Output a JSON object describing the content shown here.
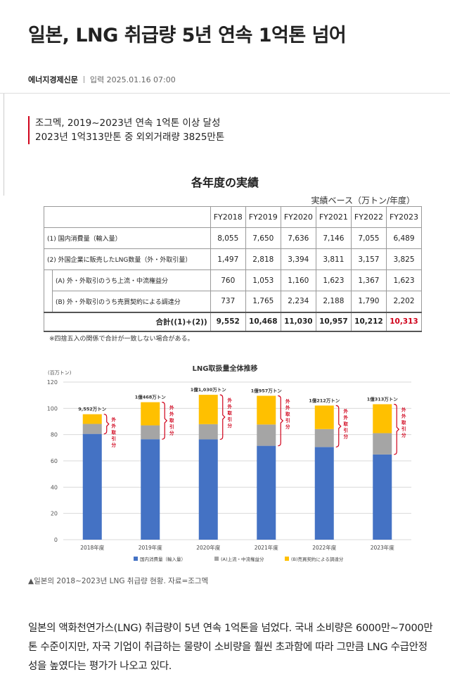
{
  "article": {
    "headline": "일본, LNG 취급량 5년 연속 1억톤 넘어",
    "press": "에너지경제신문",
    "date": "입력 2025.01.16 07:00",
    "summary": [
      "조그멕, 2019~2023년 연속 1억톤 이상 달성",
      "2023년 1억313만톤 중 외외거래량 3825만톤"
    ],
    "caption": "▲일본의 2018~2023년 LNG 취급량 현황. 자료=조그멕",
    "body": "일본의 액화천연가스(LNG) 취급량이 5년 연속 1억톤을 넘었다. 국내 소비량은 6000만~7000만톤 수준이지만, 자국 기업이 취급하는 물량이 소비량을 훨씬 초과함에 따라 그만큼 LNG 수급안정성을 높였다는 평가가 나오고 있다."
  },
  "table": {
    "title": "各年度の実績",
    "unit": "実績ベース（万トン/年度）",
    "years": [
      "FY2018",
      "FY2019",
      "FY2020",
      "FY2021",
      "FY2022",
      "FY2023"
    ],
    "rows": [
      {
        "label": "(1) 国内消費量（輸入量）",
        "values": [
          "8,055",
          "7,650",
          "7,636",
          "7,146",
          "7,055",
          "6,489"
        ]
      },
      {
        "label": "(2) 外国企業に販売したLNG数量（外・外取引量）",
        "values": [
          "1,497",
          "2,818",
          "3,394",
          "3,811",
          "3,157",
          "3,825"
        ]
      },
      {
        "label": "(A) 外・外取引のうち上流・中流権益分",
        "values": [
          "760",
          "1,053",
          "1,160",
          "1,623",
          "1,367",
          "1,623"
        ]
      },
      {
        "label": "(B) 外・外取引のうち売買契約による調達分",
        "values": [
          "737",
          "1,765",
          "2,234",
          "2,188",
          "1,790",
          "2,202"
        ]
      }
    ],
    "total_label": "合計((1)+(2))",
    "totals": [
      "9,552",
      "10,468",
      "11,030",
      "10,957",
      "10,212",
      "10,313"
    ],
    "note": "※四捨五入の関係で合計が一致しない場合がある。"
  },
  "chart_data": {
    "type": "bar",
    "stacked": true,
    "title": "LNG取扱量全体推移",
    "ylabel": "(百万トン)",
    "ylim": [
      0,
      120
    ],
    "yticks": [
      0,
      20,
      40,
      60,
      80,
      100,
      120
    ],
    "categories": [
      "2018年度",
      "2019年度",
      "2020年度",
      "2021年度",
      "2022年度",
      "2023年度"
    ],
    "series": [
      {
        "name": "国内消費量（輸入量）",
        "color": "#4472c4",
        "values": [
          80.55,
          76.5,
          76.36,
          71.46,
          70.55,
          64.89
        ]
      },
      {
        "name": "(A)上流・中流権益分",
        "color": "#a5a5a5",
        "values": [
          7.6,
          10.53,
          11.6,
          16.23,
          13.67,
          16.23
        ]
      },
      {
        "name": "(B)売買契約による調達分",
        "color": "#ffc000",
        "values": [
          7.37,
          17.65,
          22.34,
          21.88,
          17.9,
          22.02
        ]
      }
    ],
    "top_labels": [
      "9,552万トン",
      "1億468万トン",
      "1億1,030万トン",
      "1億957万トン",
      "1億212万トン",
      "1億313万トン"
    ],
    "bracket_label": "外外取引分",
    "bracket_color": "#d0021b"
  }
}
